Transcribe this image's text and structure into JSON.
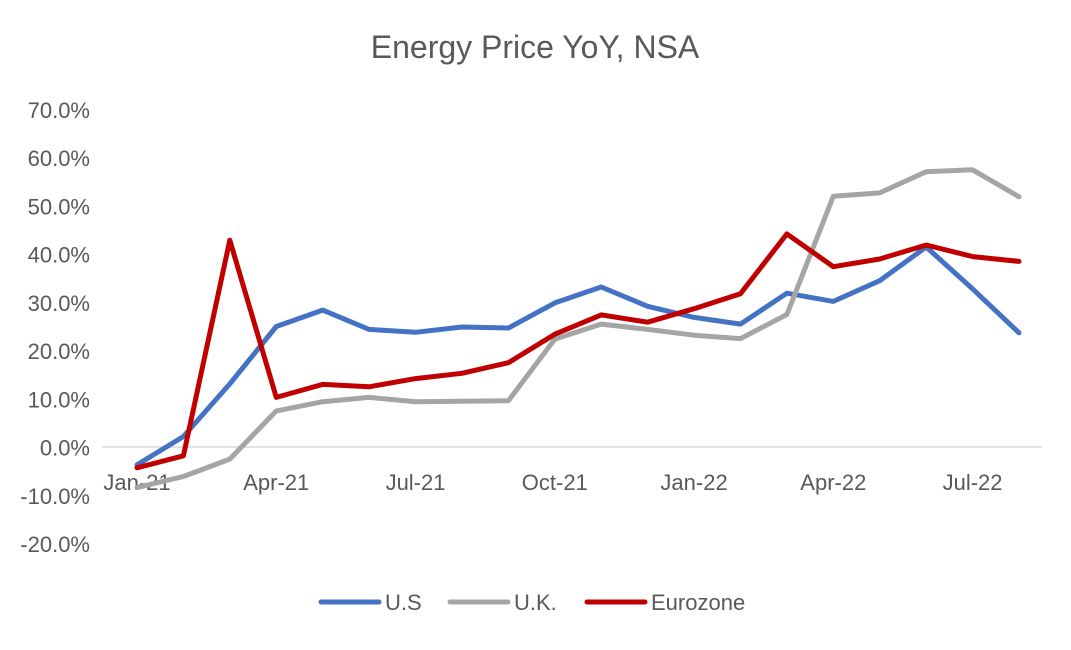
{
  "chart_data": {
    "type": "line",
    "title": "Energy Price YoY, NSA",
    "xlabel": "",
    "ylabel": "",
    "ylim": [
      -20,
      70
    ],
    "yticks": [
      "70.0%",
      "60.0%",
      "50.0%",
      "40.0%",
      "30.0%",
      "20.0%",
      "10.0%",
      "0.0%",
      "-10.0%",
      "-20.0%"
    ],
    "ytick_values": [
      70,
      60,
      50,
      40,
      30,
      20,
      10,
      0,
      -10,
      -20
    ],
    "x": [
      "Jan-21",
      "Feb-21",
      "Mar-21",
      "Apr-21",
      "May-21",
      "Jun-21",
      "Jul-21",
      "Aug-21",
      "Sep-21",
      "Oct-21",
      "Nov-21",
      "Dec-21",
      "Jan-22",
      "Feb-22",
      "Mar-22",
      "Apr-22",
      "May-22",
      "Jun-22",
      "Jul-22",
      "Aug-22"
    ],
    "xtick_labels": [
      "Jan-21",
      "Apr-21",
      "Jul-21",
      "Oct-21",
      "Jan-22",
      "Apr-22",
      "Jul-22"
    ],
    "xtick_index": [
      0,
      3,
      6,
      9,
      12,
      15,
      18
    ],
    "grid": false,
    "legend_position": "bottom",
    "series": [
      {
        "name": "U.S",
        "color": "#4472C4",
        "values": [
          -3.6,
          2.3,
          13.2,
          25.1,
          28.5,
          24.5,
          23.9,
          25.0,
          24.8,
          30.0,
          33.3,
          29.3,
          27.0,
          25.6,
          32.0,
          30.3,
          34.6,
          41.6,
          32.9,
          23.8
        ]
      },
      {
        "name": "U.K.",
        "color": "#A5A5A5",
        "values": [
          -8.3,
          -6.0,
          -2.4,
          7.6,
          9.5,
          10.4,
          9.5,
          9.6,
          9.7,
          22.5,
          25.6,
          24.5,
          23.3,
          22.6,
          27.6,
          52.1,
          52.8,
          57.2,
          57.6,
          52.0
        ]
      },
      {
        "name": "Eurozone",
        "color": "#C00000",
        "values": [
          -4.2,
          -1.7,
          43.0,
          10.4,
          13.1,
          12.6,
          14.3,
          15.4,
          17.6,
          23.5,
          27.5,
          26.0,
          28.8,
          31.9,
          44.3,
          37.5,
          39.1,
          42.0,
          39.6,
          38.6
        ]
      }
    ]
  }
}
